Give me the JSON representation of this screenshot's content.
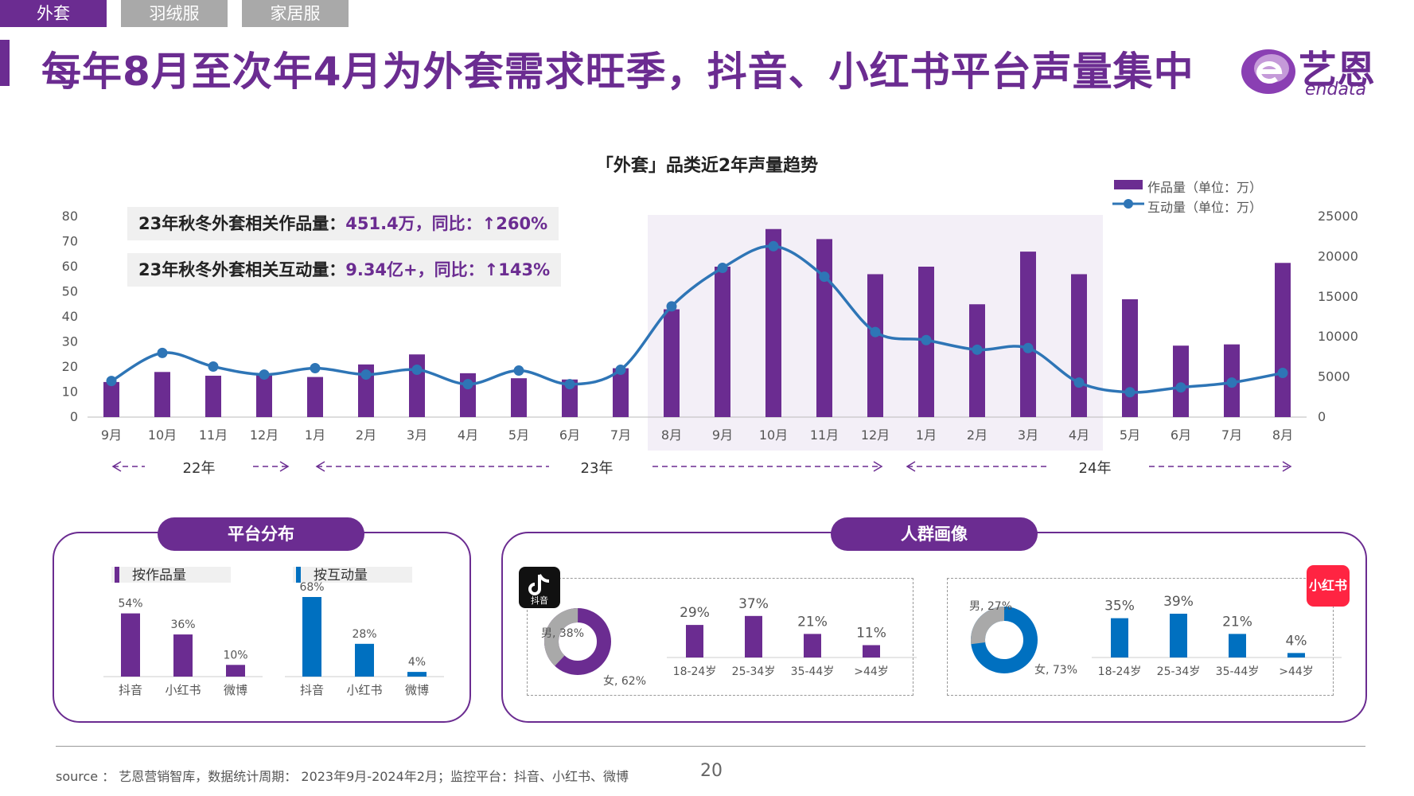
{
  "tabs": [
    "外套",
    "羽绒服",
    "家居服"
  ],
  "title": "每年8月至次年4月为外套需求旺季，抖音、小红书平台声量集中",
  "logo": {
    "name": "艺恩",
    "sub": "endata"
  },
  "colors": {
    "purple": "#6b2c91",
    "blue": "#0070c0",
    "red": "#ff2442",
    "gray": "#a9a9a9"
  },
  "chart_data": [
    {
      "type": "bar+line",
      "title": "「外套」品类近2年声量趋势",
      "categories": [
        "9月",
        "10月",
        "11月",
        "12月",
        "1月",
        "2月",
        "3月",
        "4月",
        "5月",
        "6月",
        "7月",
        "8月",
        "9月",
        "10月",
        "11月",
        "12月",
        "1月",
        "2月",
        "3月",
        "4月",
        "5月",
        "6月",
        "7月",
        "8月"
      ],
      "series": [
        {
          "name": "作品量（单位：万）",
          "type": "bar",
          "axis": "left",
          "values": [
            14,
            18,
            16.5,
            17,
            16,
            21,
            25,
            17.5,
            15.5,
            15,
            19.5,
            43,
            60,
            75,
            71,
            57,
            60,
            45,
            66,
            57,
            47,
            28.5,
            29,
            61.5
          ]
        },
        {
          "name": "互动量（单位：万）",
          "type": "line",
          "axis": "right",
          "values": [
            4500,
            8000,
            6300,
            5300,
            6100,
            5300,
            5900,
            4100,
            5800,
            4100,
            5900,
            13800,
            18600,
            21300,
            17500,
            10600,
            9600,
            8400,
            8600,
            4300,
            3100,
            3700,
            4300,
            5500
          ]
        }
      ],
      "ylim_left": [
        0,
        80
      ],
      "yticks_left": [
        0,
        10,
        20,
        30,
        40,
        50,
        60,
        70,
        80
      ],
      "ylim_right": [
        0,
        25000
      ],
      "yticks_right": [
        0,
        5000,
        10000,
        15000,
        20000,
        25000
      ],
      "highlight_range": [
        "8月",
        "4月"
      ],
      "years": [
        "22年",
        "23年",
        "24年"
      ],
      "callouts": [
        {
          "label": "23年秋冬外套相关作品量：",
          "value": "451.4万，同比：↑260%"
        },
        {
          "label": "23年秋冬外套相关互动量：",
          "value": "9.34亿+，同比：↑143%"
        }
      ]
    },
    {
      "type": "bar",
      "title": "按作品量",
      "categories": [
        "抖音",
        "小红书",
        "微博"
      ],
      "values": [
        54,
        36,
        10
      ],
      "labels": [
        "54%",
        "36%",
        "10%"
      ]
    },
    {
      "type": "bar",
      "title": "按互动量",
      "categories": [
        "抖音",
        "小红书",
        "微博"
      ],
      "values": [
        68,
        28,
        4
      ],
      "labels": [
        "68%",
        "28%",
        "4%"
      ]
    },
    {
      "type": "pie",
      "platform": "抖音",
      "slices": [
        {
          "name": "男",
          "value": 38,
          "label": "男, 38%"
        },
        {
          "name": "女",
          "value": 62,
          "label": "女, 62%"
        }
      ]
    },
    {
      "type": "bar",
      "platform": "抖音",
      "categories": [
        "18-24岁",
        "25-34岁",
        "35-44岁",
        ">44岁"
      ],
      "values": [
        29,
        37,
        21,
        11
      ],
      "labels": [
        "29%",
        "37%",
        "21%",
        "11%"
      ]
    },
    {
      "type": "pie",
      "platform": "小红书",
      "slices": [
        {
          "name": "男",
          "value": 27,
          "label": "男, 27%"
        },
        {
          "name": "女",
          "value": 73,
          "label": "女, 73%"
        }
      ]
    },
    {
      "type": "bar",
      "platform": "小红书",
      "categories": [
        "18-24岁",
        "25-34岁",
        "35-44岁",
        ">44岁"
      ],
      "values": [
        35,
        39,
        21,
        4
      ],
      "labels": [
        "35%",
        "39%",
        "21%",
        "4%"
      ]
    }
  ],
  "panels": {
    "platform": {
      "title": "平台分布",
      "left_label": "按作品量",
      "right_label": "按互动量"
    },
    "audience": {
      "title": "人群画像",
      "douyin_icon": "douyin-icon",
      "douyin_text": "抖音",
      "xhs_text": "小红书"
    }
  },
  "footer": {
    "source": "source ： 艺恩营销智库，数据统计周期： 2023年9月-2024年2月；监控平台：抖音、小红书、微博",
    "page": "20"
  }
}
